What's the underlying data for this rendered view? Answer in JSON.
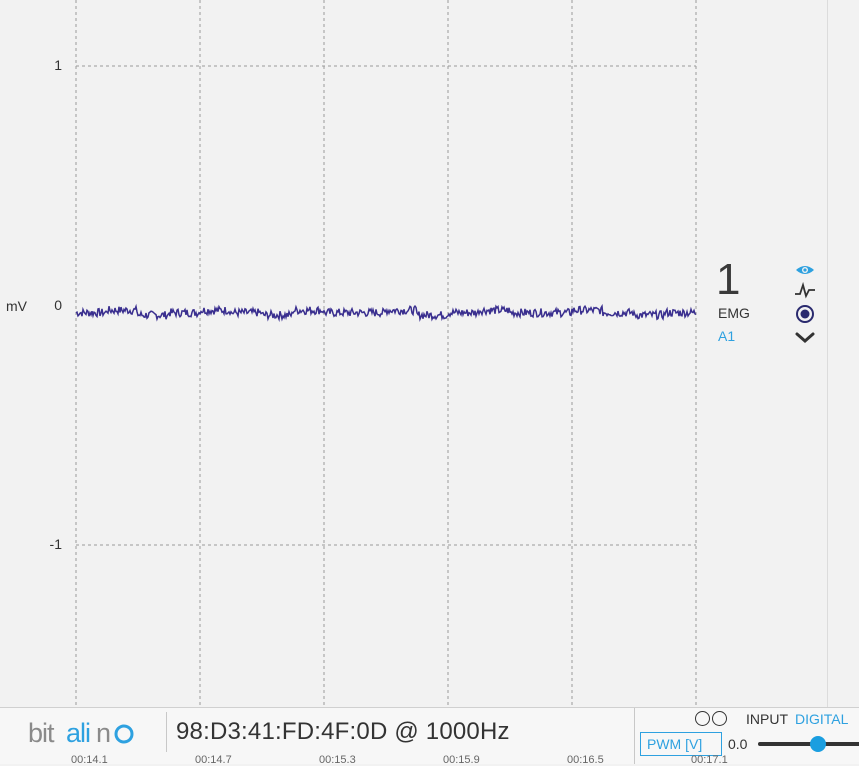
{
  "plot": {
    "unit": "mV",
    "y_ticks": [
      {
        "value": 1,
        "label": "1"
      },
      {
        "value": 0,
        "label": "0"
      },
      {
        "value": -1,
        "label": "-1"
      }
    ],
    "y_range": [
      -1.5,
      1.5
    ],
    "grid": true,
    "trace_color": "#3a2f8f"
  },
  "chart_data": {
    "type": "line",
    "ylabel": "mV",
    "ylim": [
      -1.5,
      1.5
    ],
    "series": [
      {
        "values": [
          -0.03,
          -0.02,
          -0.04,
          -0.03,
          -0.02,
          -0.03,
          -0.04,
          -0.02,
          -0.03,
          -0.03,
          -0.02,
          -0.04,
          -0.03,
          -0.02,
          -0.03,
          -0.03,
          -0.02,
          -0.03,
          -0.04,
          -0.03
        ]
      }
    ],
    "x_tick_labels": [
      "00:14.1",
      "00:14.7",
      "00:15.3",
      "00:15.9",
      "00:16.5",
      "00:17.1"
    ]
  },
  "channel": {
    "number": "1",
    "type": "EMG",
    "port": "A1",
    "icons": [
      "eye-icon",
      "waveform-icon",
      "record-icon",
      "chevron-down-icon"
    ],
    "accent": "#2ea1e0"
  },
  "bottom": {
    "logo_text": "bitalino",
    "device": "98:D3:41:FD:4F:0D @ 1000Hz",
    "input_label": "INPUT",
    "digital_label": "DIGITAL",
    "pwm_label": "PWM [V]",
    "pwm_value": "0.0",
    "pwm_fraction": 0.5
  }
}
